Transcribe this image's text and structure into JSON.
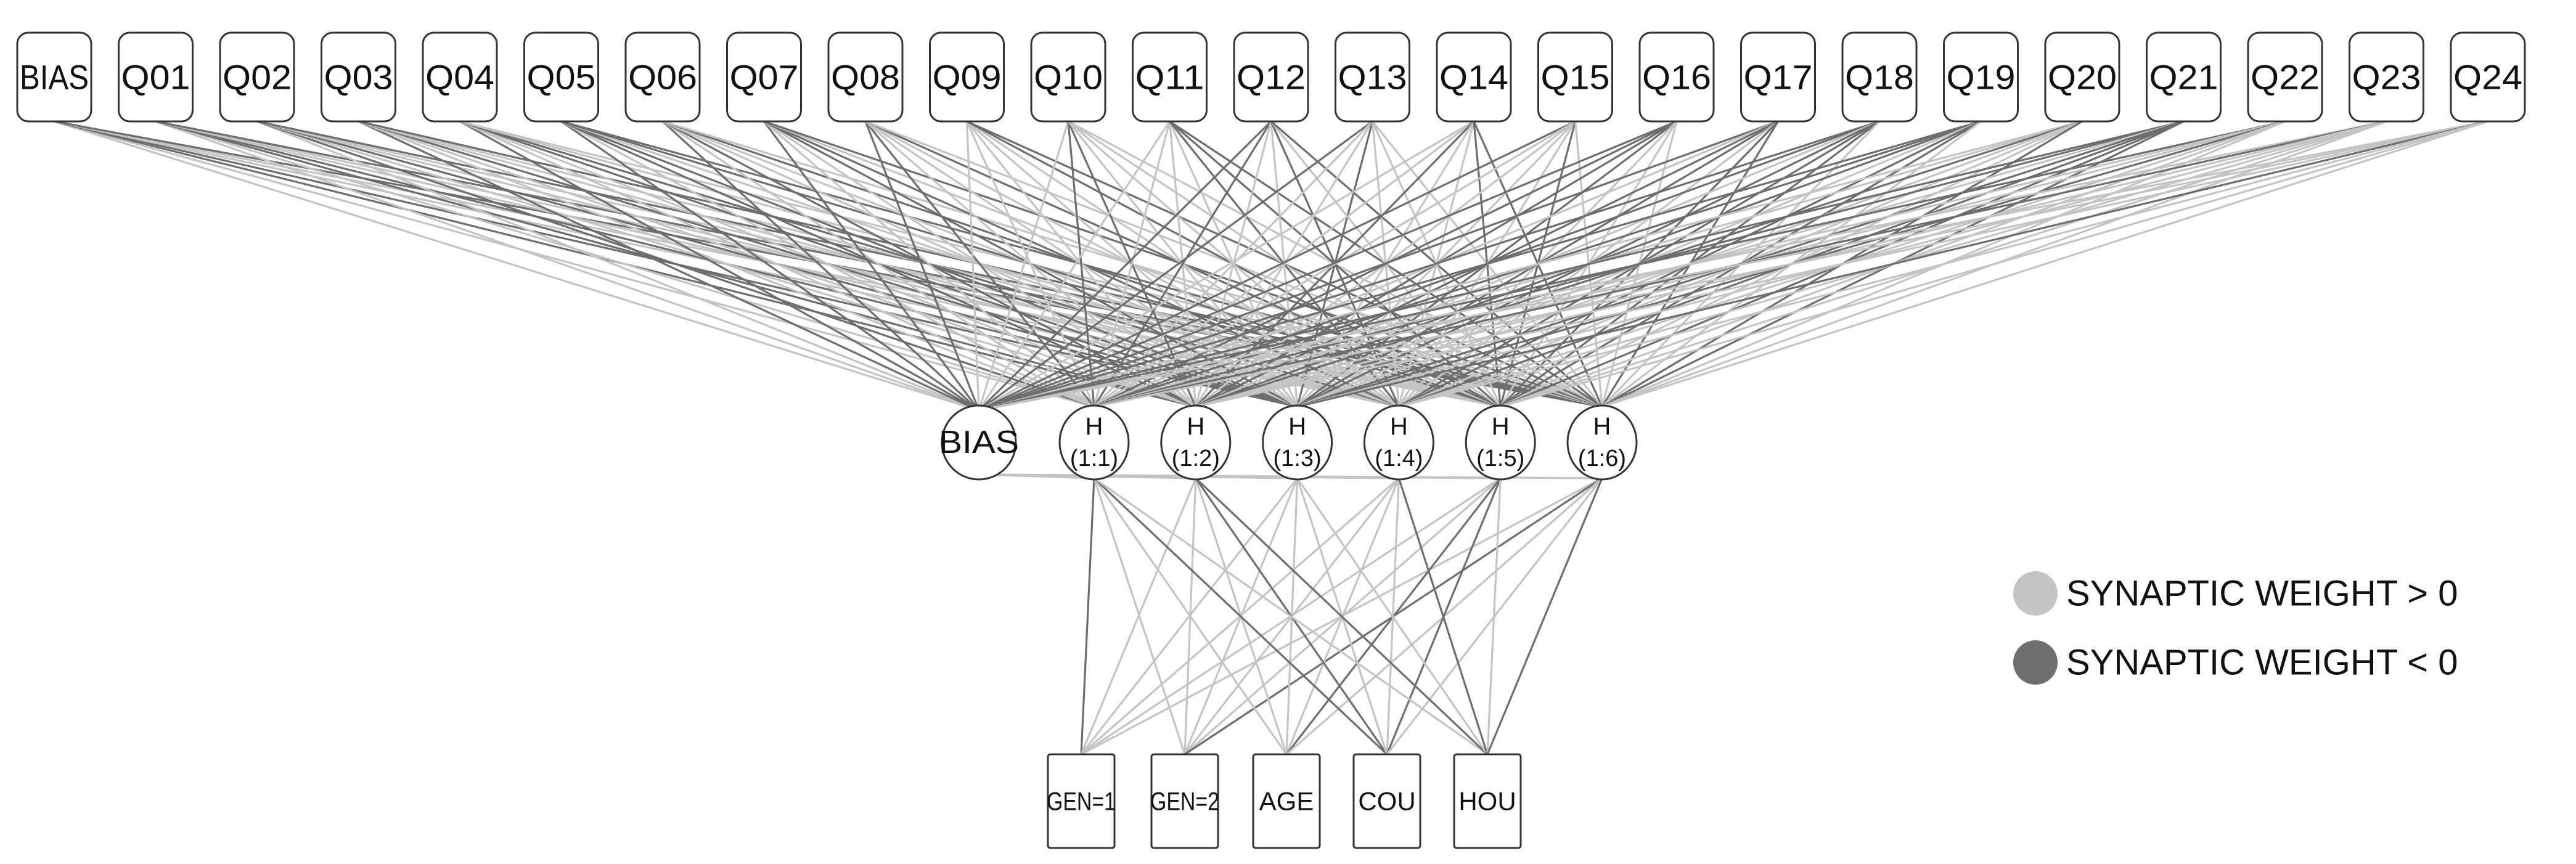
{
  "output_nodes": [
    "BIAS",
    "Q01",
    "Q02",
    "Q03",
    "Q04",
    "Q05",
    "Q06",
    "Q07",
    "Q08",
    "Q09",
    "Q10",
    "Q11",
    "Q12",
    "Q13",
    "Q14",
    "Q15",
    "Q16",
    "Q17",
    "Q18",
    "Q19",
    "Q20",
    "Q21",
    "Q22",
    "Q23",
    "Q24"
  ],
  "hidden_bias_label": "BIAS",
  "hidden_nodes": [
    {
      "letter": "H",
      "index": "(1:1)"
    },
    {
      "letter": "H",
      "index": "(1:2)"
    },
    {
      "letter": "H",
      "index": "(1:3)"
    },
    {
      "letter": "H",
      "index": "(1:4)"
    },
    {
      "letter": "H",
      "index": "(1:5)"
    },
    {
      "letter": "H",
      "index": "(1:6)"
    }
  ],
  "input_nodes": [
    "GEN=1",
    "GEN=2",
    "AGE",
    "COU",
    "HOU"
  ],
  "legend": {
    "positive_label": "SYNAPTIC WEIGHT > 0",
    "negative_label": "SYNAPTIC WEIGHT < 0"
  },
  "colors": {
    "positive": "#c4c4c4",
    "negative": "#6e6e6e"
  }
}
